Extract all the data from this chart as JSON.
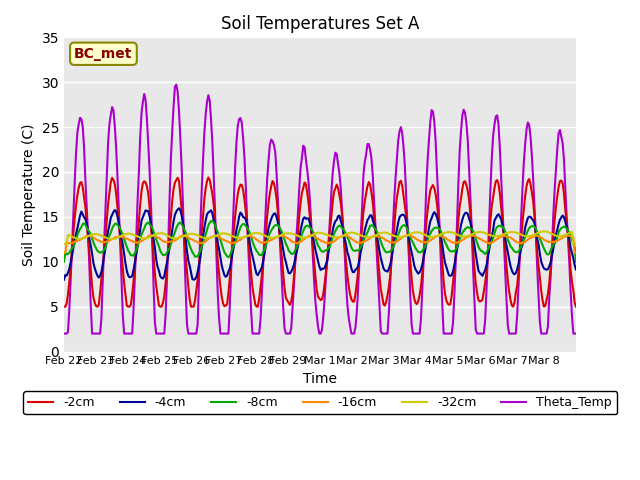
{
  "title": "Soil Temperatures Set A",
  "xlabel": "Time",
  "ylabel": "Soil Temperature (C)",
  "ylim": [
    0,
    35
  ],
  "annotation_text": "BC_met",
  "bg_color": "#e8e8e8",
  "grid_color": "white",
  "series": {
    "-2cm": {
      "color": "#dd0000",
      "lw": 1.5
    },
    "-4cm": {
      "color": "#000099",
      "lw": 1.5
    },
    "-8cm": {
      "color": "#00aa00",
      "lw": 1.5
    },
    "-16cm": {
      "color": "#ff8800",
      "lw": 1.5
    },
    "-32cm": {
      "color": "#cccc00",
      "lw": 1.5
    },
    "Theta_Temp": {
      "color": "#aa00cc",
      "lw": 1.5
    }
  },
  "x_tick_labels": [
    "Feb 22",
    "Feb 23",
    "Feb 24",
    "Feb 25",
    "Feb 26",
    "Feb 27",
    "Feb 28",
    "Feb 29",
    "Mar 1",
    "Mar 2",
    "Mar 3",
    "Mar 4",
    "Mar 5",
    "Mar 6",
    "Mar 7",
    "Mar 8"
  ],
  "y_ticks": [
    0,
    5,
    10,
    15,
    20,
    25,
    30,
    35
  ]
}
